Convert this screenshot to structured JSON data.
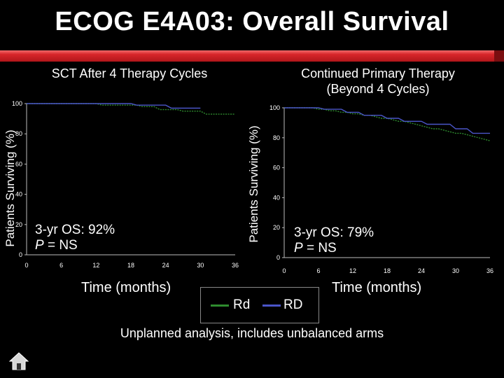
{
  "title": "ECOG E4A03: Overall Survival",
  "footnote": "Unplanned analysis, includes unbalanced arms",
  "legend": [
    {
      "label": "Rd",
      "color": "#2e8b2e"
    },
    {
      "label": "RD",
      "color": "#4a55c8"
    }
  ],
  "chart_data": [
    {
      "type": "line",
      "title": "SCT After 4 Therapy Cycles",
      "xlabel": "Time (months)",
      "ylabel": "Patients Surviving (%)",
      "xlim": [
        0,
        36
      ],
      "ylim": [
        0,
        100
      ],
      "xticks": [
        "0",
        "6",
        "12",
        "18",
        "24",
        "30",
        "36"
      ],
      "yticks": [
        "0",
        "20",
        "40",
        "60",
        "80",
        "100"
      ],
      "annotation_line1": "3-yr OS: 92%",
      "annotation_p": "P",
      "annotation_ns": " = NS",
      "series": [
        {
          "name": "Rd",
          "color": "#2e8b2e",
          "dash": true,
          "x": [
            0,
            12,
            13,
            19,
            20,
            22,
            23,
            26,
            27,
            30,
            31,
            36
          ],
          "y": [
            100,
            100,
            99,
            99,
            98,
            98,
            96,
            96,
            95,
            95,
            93,
            93
          ]
        },
        {
          "name": "RD",
          "color": "#4a55c8",
          "dash": false,
          "x": [
            0,
            18,
            19,
            24,
            25,
            30
          ],
          "y": [
            100,
            100,
            99,
            99,
            97,
            97
          ]
        }
      ]
    },
    {
      "type": "line",
      "title_line1": "Continued Primary Therapy",
      "title_line2": "(Beyond 4 Cycles)",
      "xlabel": "Time (months)",
      "ylabel": "Patients Surviving (%)",
      "xlim": [
        0,
        36
      ],
      "ylim": [
        0,
        100
      ],
      "xticks": [
        "0",
        "6",
        "12",
        "18",
        "24",
        "30",
        "36"
      ],
      "yticks": [
        "0",
        "20",
        "40",
        "60",
        "80",
        "100"
      ],
      "annotation_line1": "3-yr OS: 79%",
      "annotation_p": "P",
      "annotation_ns": " = NS",
      "series": [
        {
          "name": "Rd",
          "color": "#2e8b2e",
          "dash": true,
          "x": [
            0,
            5,
            6,
            7,
            8,
            9,
            10,
            11,
            12,
            13,
            14,
            15,
            16,
            17,
            18,
            19,
            20,
            21,
            22,
            23,
            24,
            25,
            26,
            27,
            28,
            29,
            30,
            31,
            32,
            33,
            34,
            35,
            36
          ],
          "y": [
            100,
            100,
            99,
            99,
            98,
            98,
            97,
            97,
            96,
            96,
            95,
            95,
            94,
            93,
            93,
            92,
            91,
            91,
            90,
            89,
            88,
            87,
            86,
            86,
            85,
            84,
            83,
            83,
            82,
            81,
            80,
            79,
            78
          ]
        },
        {
          "name": "RD",
          "color": "#4a55c8",
          "dash": false,
          "x": [
            0,
            6,
            7,
            10,
            11,
            13,
            14,
            17,
            18,
            20,
            21,
            24,
            25,
            29,
            30,
            32,
            33,
            36
          ],
          "y": [
            100,
            100,
            99,
            99,
            97,
            97,
            95,
            95,
            93,
            93,
            91,
            91,
            89,
            89,
            86,
            86,
            83,
            83
          ]
        }
      ]
    }
  ]
}
